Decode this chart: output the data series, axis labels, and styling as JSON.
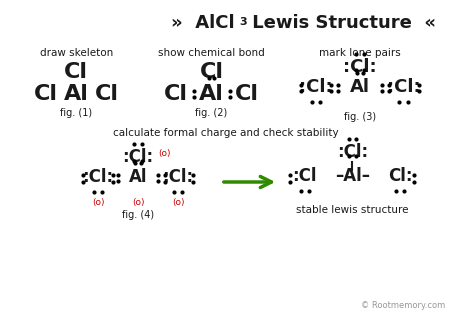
{
  "title_left": "»  AlCl",
  "title_sub": "3",
  "title_right": " Lewis Structure  «",
  "bg_color": "#ffffff",
  "text_color": "#1a1a1a",
  "red_color": "#cc0000",
  "green_color": "#2e8b00",
  "figsize": [
    4.74,
    3.15
  ],
  "dpi": 100,
  "label1": "draw skeleton",
  "label2": "show chemical bond",
  "label3": "mark lone pairs",
  "label4": "calculate formal charge and check stability",
  "label5": "stable lewis structure",
  "fig1": "fig. (1)",
  "fig2": "fig. (2)",
  "fig3": "fig. (3)",
  "fig4": "fig. (4)",
  "copyright": "© Rootmemory.com"
}
